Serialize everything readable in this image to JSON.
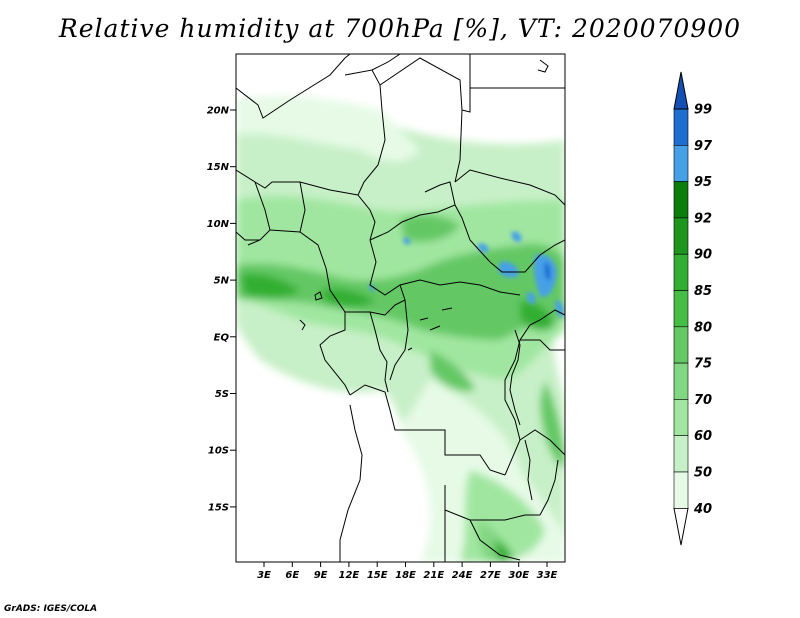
{
  "title": "Relative humidity at 700hPa [%], VT: 2020070900",
  "credit": "GrADS: IGES/COLA",
  "y_axis_labels": [
    "20N",
    "15N",
    "10N",
    "5N",
    "EQ",
    "5S",
    "10S",
    "15S"
  ],
  "x_axis_labels": [
    "3E",
    "6E",
    "9E",
    "12E",
    "15E",
    "18E",
    "21E",
    "24E",
    "27E",
    "30E",
    "33E"
  ],
  "colorbar": {
    "levels": [
      "40",
      "50",
      "60",
      "70",
      "75",
      "80",
      "85",
      "90",
      "92",
      "95",
      "97",
      "99"
    ],
    "colors": [
      "#ffffff",
      "#e6fae6",
      "#c8f0c8",
      "#a0e6a0",
      "#82d782",
      "#64c864",
      "#46be46",
      "#32af32",
      "#1e961e",
      "#0a7d0a",
      "#46a0e6",
      "#1e6ed2",
      "#1450b4"
    ]
  }
}
